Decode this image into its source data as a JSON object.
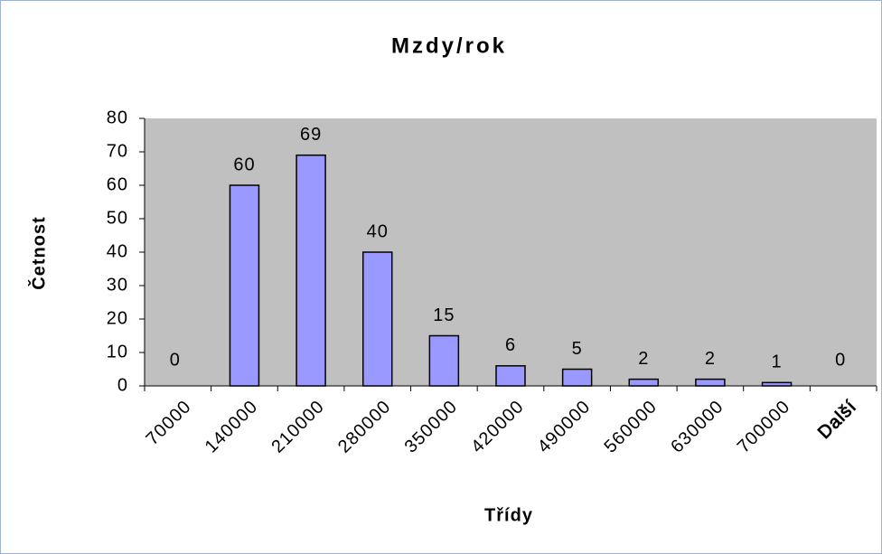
{
  "chart_data": {
    "type": "bar",
    "title": "Mzdy/rok",
    "x_label": "Třídy",
    "y_label": "Četnost",
    "categories": [
      "70000",
      "140000",
      "210000",
      "280000",
      "350000",
      "420000",
      "490000",
      "560000",
      "630000",
      "700000",
      "Další"
    ],
    "values": [
      0,
      60,
      69,
      40,
      15,
      6,
      5,
      2,
      2,
      1,
      0
    ],
    "color": "#9999ff",
    "ylim": [
      0,
      80
    ],
    "yticks": [
      0,
      10,
      20,
      30,
      40,
      50,
      60,
      70,
      80
    ],
    "grid": false
  }
}
